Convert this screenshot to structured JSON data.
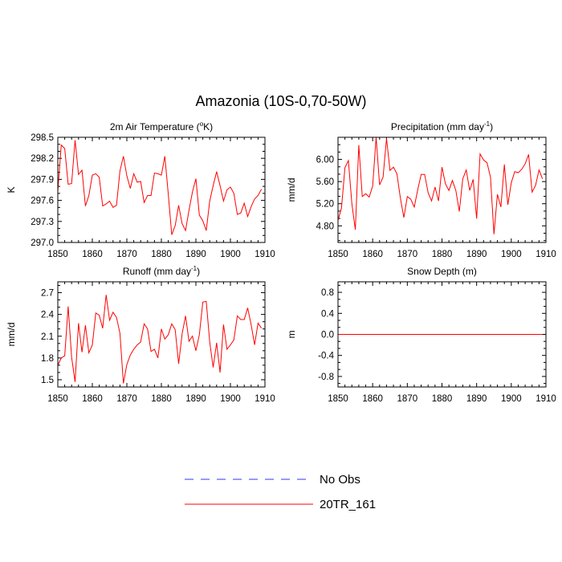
{
  "title": "Amazonia (10S-0,70-50W)",
  "colors": {
    "series": "#ff0000",
    "noobs": "#3333ff"
  },
  "legend": [
    {
      "label": "No Obs",
      "style": "dashed",
      "color": "#3333ff"
    },
    {
      "label": "20TR_161",
      "style": "solid",
      "color": "#ff0000"
    }
  ],
  "chart_data": [
    {
      "type": "line",
      "title_main": "2m Air Temperature (",
      "title_sup": "o",
      "title_rest": "K)",
      "ylabel": "K",
      "xlim": [
        1850,
        1910
      ],
      "ylim": [
        297.0,
        298.5
      ],
      "xticks": [
        1850,
        1860,
        1870,
        1880,
        1890,
        1900,
        1910
      ],
      "yticks": [
        297.0,
        297.3,
        297.6,
        297.9,
        298.2,
        298.5
      ],
      "ytick_labels": [
        "297.0",
        "297.3",
        "297.6",
        "297.9",
        "298.2",
        "298.5"
      ],
      "series": [
        {
          "name": "20TR_161",
          "x": [
            1850,
            1851,
            1852,
            1853,
            1854,
            1855,
            1856,
            1857,
            1858,
            1859,
            1860,
            1861,
            1862,
            1863,
            1864,
            1865,
            1866,
            1867,
            1868,
            1869,
            1870,
            1871,
            1872,
            1873,
            1874,
            1875,
            1876,
            1877,
            1878,
            1879,
            1880,
            1881,
            1882,
            1883,
            1884,
            1885,
            1886,
            1887,
            1888,
            1889,
            1890,
            1891,
            1892,
            1893,
            1894,
            1895,
            1896,
            1897,
            1898,
            1899,
            1900,
            1901,
            1902,
            1903,
            1904,
            1905,
            1906,
            1907,
            1908,
            1909
          ],
          "values": [
            297.73,
            298.39,
            298.34,
            297.83,
            297.84,
            298.46,
            297.97,
            298.03,
            297.52,
            297.67,
            297.96,
            297.98,
            297.93,
            297.52,
            297.55,
            297.59,
            297.5,
            297.53,
            298.02,
            298.23,
            297.95,
            297.77,
            297.98,
            297.86,
            297.87,
            297.57,
            297.67,
            297.67,
            297.99,
            297.98,
            297.96,
            298.23,
            297.69,
            297.11,
            297.24,
            297.53,
            297.27,
            297.17,
            297.46,
            297.72,
            297.91,
            297.39,
            297.31,
            297.17,
            297.59,
            297.81,
            298.01,
            297.81,
            297.59,
            297.75,
            297.79,
            297.7,
            297.4,
            297.42,
            297.56,
            297.37,
            297.51,
            297.62,
            297.67,
            297.76
          ]
        }
      ]
    },
    {
      "type": "line",
      "title_main": "Precipitation (mm day",
      "title_sup": "-1",
      "title_rest": ")",
      "ylabel": "mm/d",
      "xlim": [
        1850,
        1910
      ],
      "ylim": [
        4.5,
        6.4
      ],
      "xticks": [
        1850,
        1860,
        1870,
        1880,
        1890,
        1900,
        1910
      ],
      "yticks": [
        4.8,
        5.2,
        5.6,
        6.0
      ],
      "ytick_labels": [
        "4.80",
        "5.20",
        "5.60",
        "6.00"
      ],
      "series": [
        {
          "name": "20TR_161",
          "x": [
            1850,
            1851,
            1852,
            1853,
            1854,
            1855,
            1856,
            1857,
            1858,
            1859,
            1860,
            1861,
            1862,
            1863,
            1864,
            1865,
            1866,
            1867,
            1868,
            1869,
            1870,
            1871,
            1872,
            1873,
            1874,
            1875,
            1876,
            1877,
            1878,
            1879,
            1880,
            1881,
            1882,
            1883,
            1884,
            1885,
            1886,
            1887,
            1888,
            1889,
            1890,
            1891,
            1892,
            1893,
            1894,
            1895,
            1896,
            1897,
            1898,
            1899,
            1900,
            1901,
            1902,
            1903,
            1904,
            1905,
            1906,
            1907,
            1908,
            1909
          ],
          "values": [
            4.9,
            5.12,
            5.85,
            5.98,
            5.2,
            4.73,
            6.26,
            5.33,
            5.38,
            5.32,
            5.52,
            6.4,
            5.54,
            5.68,
            6.38,
            5.8,
            5.86,
            5.74,
            5.3,
            4.95,
            5.33,
            5.28,
            5.14,
            5.45,
            5.73,
            5.73,
            5.4,
            5.25,
            5.5,
            5.25,
            5.86,
            5.56,
            5.44,
            5.62,
            5.44,
            5.06,
            5.65,
            5.81,
            5.44,
            5.64,
            4.93,
            6.1,
            5.99,
            5.94,
            5.68,
            4.65,
            5.37,
            5.14,
            5.91,
            5.18,
            5.58,
            5.78,
            5.76,
            5.82,
            5.92,
            6.09,
            5.41,
            5.53,
            5.81,
            5.65
          ]
        }
      ]
    },
    {
      "type": "line",
      "title_main": "Runoff (mm day",
      "title_sup": "-1",
      "title_rest": ")",
      "ylabel": "mm/d",
      "xlim": [
        1850,
        1910
      ],
      "ylim": [
        1.4,
        2.85
      ],
      "xticks": [
        1850,
        1860,
        1870,
        1880,
        1890,
        1900,
        1910
      ],
      "yticks": [
        1.5,
        1.8,
        2.1,
        2.4,
        2.7
      ],
      "ytick_labels": [
        "1.5",
        "1.8",
        "2.1",
        "2.4",
        "2.7"
      ],
      "series": [
        {
          "name": "20TR_161",
          "x": [
            1850,
            1851,
            1852,
            1853,
            1854,
            1855,
            1856,
            1857,
            1858,
            1859,
            1860,
            1861,
            1862,
            1863,
            1864,
            1865,
            1866,
            1867,
            1868,
            1869,
            1870,
            1871,
            1872,
            1873,
            1874,
            1875,
            1876,
            1877,
            1878,
            1879,
            1880,
            1881,
            1882,
            1883,
            1884,
            1885,
            1886,
            1887,
            1888,
            1889,
            1890,
            1891,
            1892,
            1893,
            1894,
            1895,
            1896,
            1897,
            1898,
            1899,
            1900,
            1901,
            1902,
            1903,
            1904,
            1905,
            1906,
            1907,
            1908,
            1909
          ],
          "values": [
            1.7,
            1.8,
            1.83,
            2.51,
            1.81,
            1.47,
            2.28,
            1.88,
            2.25,
            1.87,
            1.98,
            2.42,
            2.39,
            2.21,
            2.67,
            2.32,
            2.43,
            2.36,
            2.14,
            1.45,
            1.71,
            1.84,
            1.92,
            1.98,
            2.02,
            2.27,
            2.2,
            1.89,
            1.92,
            1.8,
            2.2,
            2.06,
            2.12,
            2.27,
            2.19,
            1.72,
            2.13,
            2.38,
            2.03,
            2.1,
            1.9,
            2.12,
            2.57,
            2.58,
            2.02,
            1.67,
            2.01,
            1.6,
            2.26,
            1.92,
            1.98,
            2.05,
            2.38,
            2.33,
            2.33,
            2.49,
            2.26,
            1.98,
            2.28,
            2.21
          ]
        }
      ]
    },
    {
      "type": "line",
      "title_main": "Snow Depth (m)",
      "title_sup": "",
      "title_rest": "",
      "ylabel": "m",
      "xlim": [
        1850,
        1910
      ],
      "ylim": [
        -1.0,
        1.0
      ],
      "xticks": [
        1850,
        1860,
        1870,
        1880,
        1890,
        1900,
        1910
      ],
      "yticks": [
        -0.8,
        -0.4,
        0.0,
        0.4,
        0.8
      ],
      "ytick_labels": [
        "-0.8",
        "-0.4",
        "0.0",
        "0.4",
        "0.8"
      ],
      "series": [
        {
          "name": "20TR_161",
          "x": [
            1850,
            1851,
            1852,
            1853,
            1854,
            1855,
            1856,
            1857,
            1858,
            1859,
            1860,
            1861,
            1862,
            1863,
            1864,
            1865,
            1866,
            1867,
            1868,
            1869,
            1870,
            1871,
            1872,
            1873,
            1874,
            1875,
            1876,
            1877,
            1878,
            1879,
            1880,
            1881,
            1882,
            1883,
            1884,
            1885,
            1886,
            1887,
            1888,
            1889,
            1890,
            1891,
            1892,
            1893,
            1894,
            1895,
            1896,
            1897,
            1898,
            1899,
            1900,
            1901,
            1902,
            1903,
            1904,
            1905,
            1906,
            1907,
            1908,
            1909
          ],
          "values": [
            0,
            0,
            0,
            0,
            0,
            0,
            0,
            0,
            0,
            0,
            0,
            0,
            0,
            0,
            0,
            0,
            0,
            0,
            0,
            0,
            0,
            0,
            0,
            0,
            0,
            0,
            0,
            0,
            0,
            0,
            0,
            0,
            0,
            0,
            0,
            0,
            0,
            0,
            0,
            0,
            0,
            0,
            0,
            0,
            0,
            0,
            0,
            0,
            0,
            0,
            0,
            0,
            0,
            0,
            0,
            0,
            0,
            0,
            0,
            0
          ]
        }
      ]
    }
  ]
}
